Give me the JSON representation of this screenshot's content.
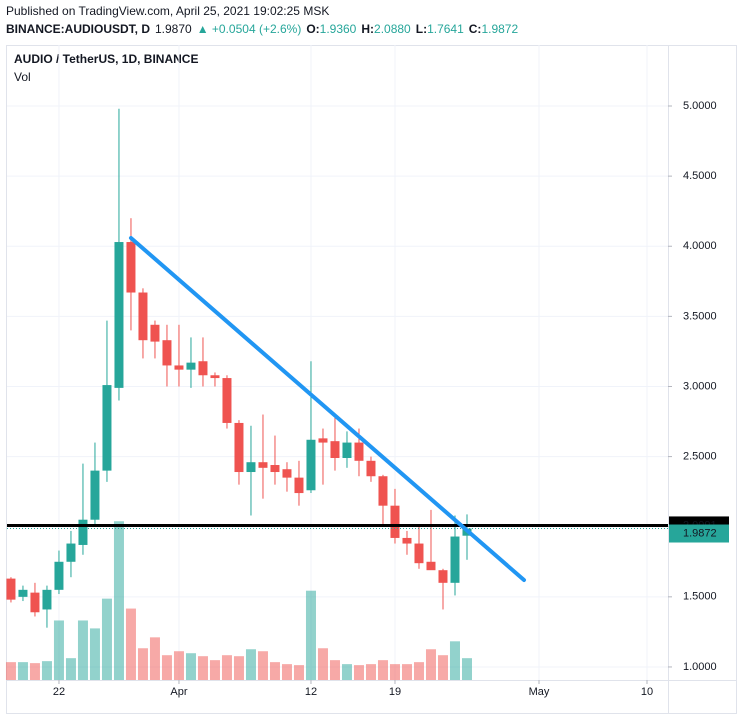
{
  "header": {
    "published": "Published on TradingView.com, April 25, 2021 19:02:25 MSK",
    "symbol": "BINANCE:AUDIOUSDT, D",
    "last": "1.9870",
    "change": "▲ +0.0504 (+2.6%)",
    "ohlc": [
      {
        "label": "O:",
        "value": "1.9360"
      },
      {
        "label": "H:",
        "value": "2.0880"
      },
      {
        "label": "L:",
        "value": "1.7641"
      },
      {
        "label": "C:",
        "value": "1.9872"
      }
    ]
  },
  "chart_data": {
    "type": "candlestick",
    "title": "AUDIO / TetherUS, 1D, BINANCE",
    "volume_label": "Vol",
    "up_color": "#26a69a",
    "down_color": "#ef5350",
    "open": [
      1.63,
      1.5,
      1.53,
      1.41,
      1.55,
      1.75,
      1.87,
      2.05,
      2.4,
      2.99,
      4.03,
      3.67,
      3.44,
      3.33,
      3.15,
      3.12,
      3.18,
      3.08,
      3.06,
      2.74,
      2.39,
      2.46,
      2.44,
      2.41,
      2.35,
      2.26,
      2.63,
      2.61,
      2.49,
      2.6,
      2.47,
      2.36,
      2.15,
      1.92,
      1.88,
      1.75,
      1.69,
      1.6,
      1.936
    ],
    "high": [
      1.64,
      1.58,
      1.6,
      1.58,
      1.83,
      1.97,
      2.45,
      2.6,
      3.47,
      4.98,
      4.2,
      3.7,
      3.47,
      3.44,
      3.44,
      3.35,
      3.35,
      3.1,
      3.08,
      2.76,
      2.72,
      2.8,
      2.65,
      2.46,
      2.47,
      3.18,
      2.7,
      2.8,
      2.68,
      2.7,
      2.5,
      2.37,
      2.27,
      1.97,
      2.0,
      2.12,
      1.7,
      2.08,
      2.088
    ],
    "low": [
      1.46,
      1.47,
      1.36,
      1.28,
      1.52,
      1.64,
      1.8,
      2.0,
      2.32,
      2.9,
      3.4,
      3.2,
      3.2,
      3.0,
      3.0,
      2.99,
      3.0,
      3.0,
      2.7,
      2.3,
      2.08,
      2.2,
      2.3,
      2.25,
      2.15,
      2.24,
      2.3,
      2.4,
      2.42,
      2.36,
      2.32,
      2.0,
      1.88,
      1.8,
      1.7,
      1.7,
      1.41,
      1.51,
      1.7641
    ],
    "close": [
      1.48,
      1.55,
      1.39,
      1.55,
      1.75,
      1.88,
      2.05,
      2.4,
      3.01,
      4.03,
      3.67,
      3.33,
      3.32,
      3.15,
      3.12,
      3.17,
      3.08,
      3.06,
      2.74,
      2.39,
      2.46,
      2.42,
      2.39,
      2.35,
      2.24,
      2.62,
      2.6,
      2.49,
      2.6,
      2.47,
      2.36,
      2.15,
      1.92,
      1.88,
      1.74,
      1.69,
      1.6,
      1.93,
      1.9872
    ],
    "volume": [
      18,
      18,
      17,
      19,
      60,
      22,
      60,
      52,
      82,
      160,
      72,
      32,
      43,
      25,
      29,
      27,
      24,
      20,
      25,
      24,
      31,
      29,
      18,
      16,
      15,
      90,
      32,
      20,
      16,
      15,
      16,
      20,
      16,
      16,
      18,
      31,
      25,
      39,
      22
    ],
    "xlim": [
      -0.33,
      54.75
    ],
    "xticks": [
      {
        "value": 4,
        "label": "22"
      },
      {
        "value": 14,
        "label": "Apr"
      },
      {
        "value": 25,
        "label": "12"
      },
      {
        "value": 32,
        "label": "19"
      },
      {
        "value": 44,
        "label": "May"
      },
      {
        "value": 53,
        "label": "10"
      }
    ],
    "ylim": [
      0.907,
      5.435
    ],
    "yticks": [
      {
        "value": 1,
        "label": "1.0000"
      },
      {
        "value": 1.5,
        "label": "1.5000"
      },
      {
        "value": 2,
        "label": "2.0000"
      },
      {
        "value": 2.5,
        "label": "2.5000"
      },
      {
        "value": 3,
        "label": "3.0000"
      },
      {
        "value": 3.5,
        "label": "3.5000"
      },
      {
        "value": 4,
        "label": "4.0000"
      },
      {
        "value": 4.5,
        "label": "4.5000"
      },
      {
        "value": 5,
        "label": "5.0000"
      }
    ],
    "trendline": {
      "x": [
        10,
        42.75
      ],
      "y": [
        4.059,
        1.62
      ],
      "color": "#2196f3"
    },
    "hline": {
      "value": 2.0091,
      "color": "#000000"
    }
  }
}
